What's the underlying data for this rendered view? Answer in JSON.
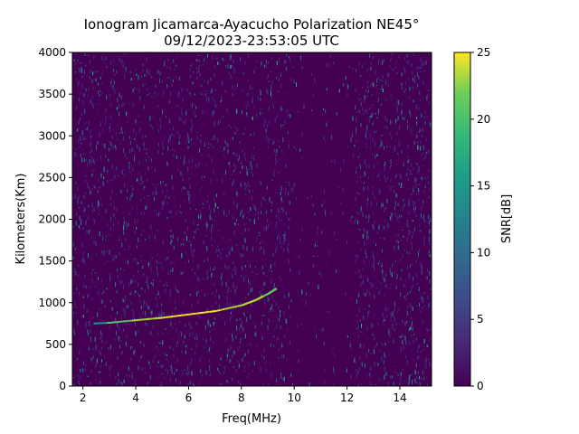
{
  "chart_data": {
    "type": "heatmap",
    "title": "Ionogram Jicamarca-Ayacucho Polarization NE45°",
    "subtitle": "09/12/2023-23:53:05 UTC",
    "xlabel": "Freq(MHz)",
    "ylabel": "Kilometers(Km)",
    "xlim": [
      1.6,
      15.2
    ],
    "ylim": [
      0,
      4000
    ],
    "xticks": [
      "2",
      "4",
      "6",
      "8",
      "10",
      "12",
      "14"
    ],
    "yticks": [
      "0",
      "500",
      "1000",
      "1500",
      "2000",
      "2500",
      "3000",
      "3500",
      "4000"
    ],
    "colorbar": {
      "label": "SNR[dB]",
      "range": [
        0,
        25
      ],
      "ticks": [
        "0",
        "5",
        "10",
        "15",
        "20",
        "25"
      ],
      "colormap": "viridis"
    },
    "background_color": "#440154",
    "trace": {
      "description_points": [
        {
          "freq": 2.4,
          "km": 750
        },
        {
          "freq": 3.0,
          "km": 760
        },
        {
          "freq": 4.0,
          "km": 790
        },
        {
          "freq": 5.0,
          "km": 820
        },
        {
          "freq": 6.0,
          "km": 860
        },
        {
          "freq": 7.0,
          "km": 900
        },
        {
          "freq": 8.0,
          "km": 970
        },
        {
          "freq": 8.5,
          "km": 1030
        },
        {
          "freq": 9.0,
          "km": 1110
        },
        {
          "freq": 9.3,
          "km": 1170
        }
      ]
    }
  }
}
